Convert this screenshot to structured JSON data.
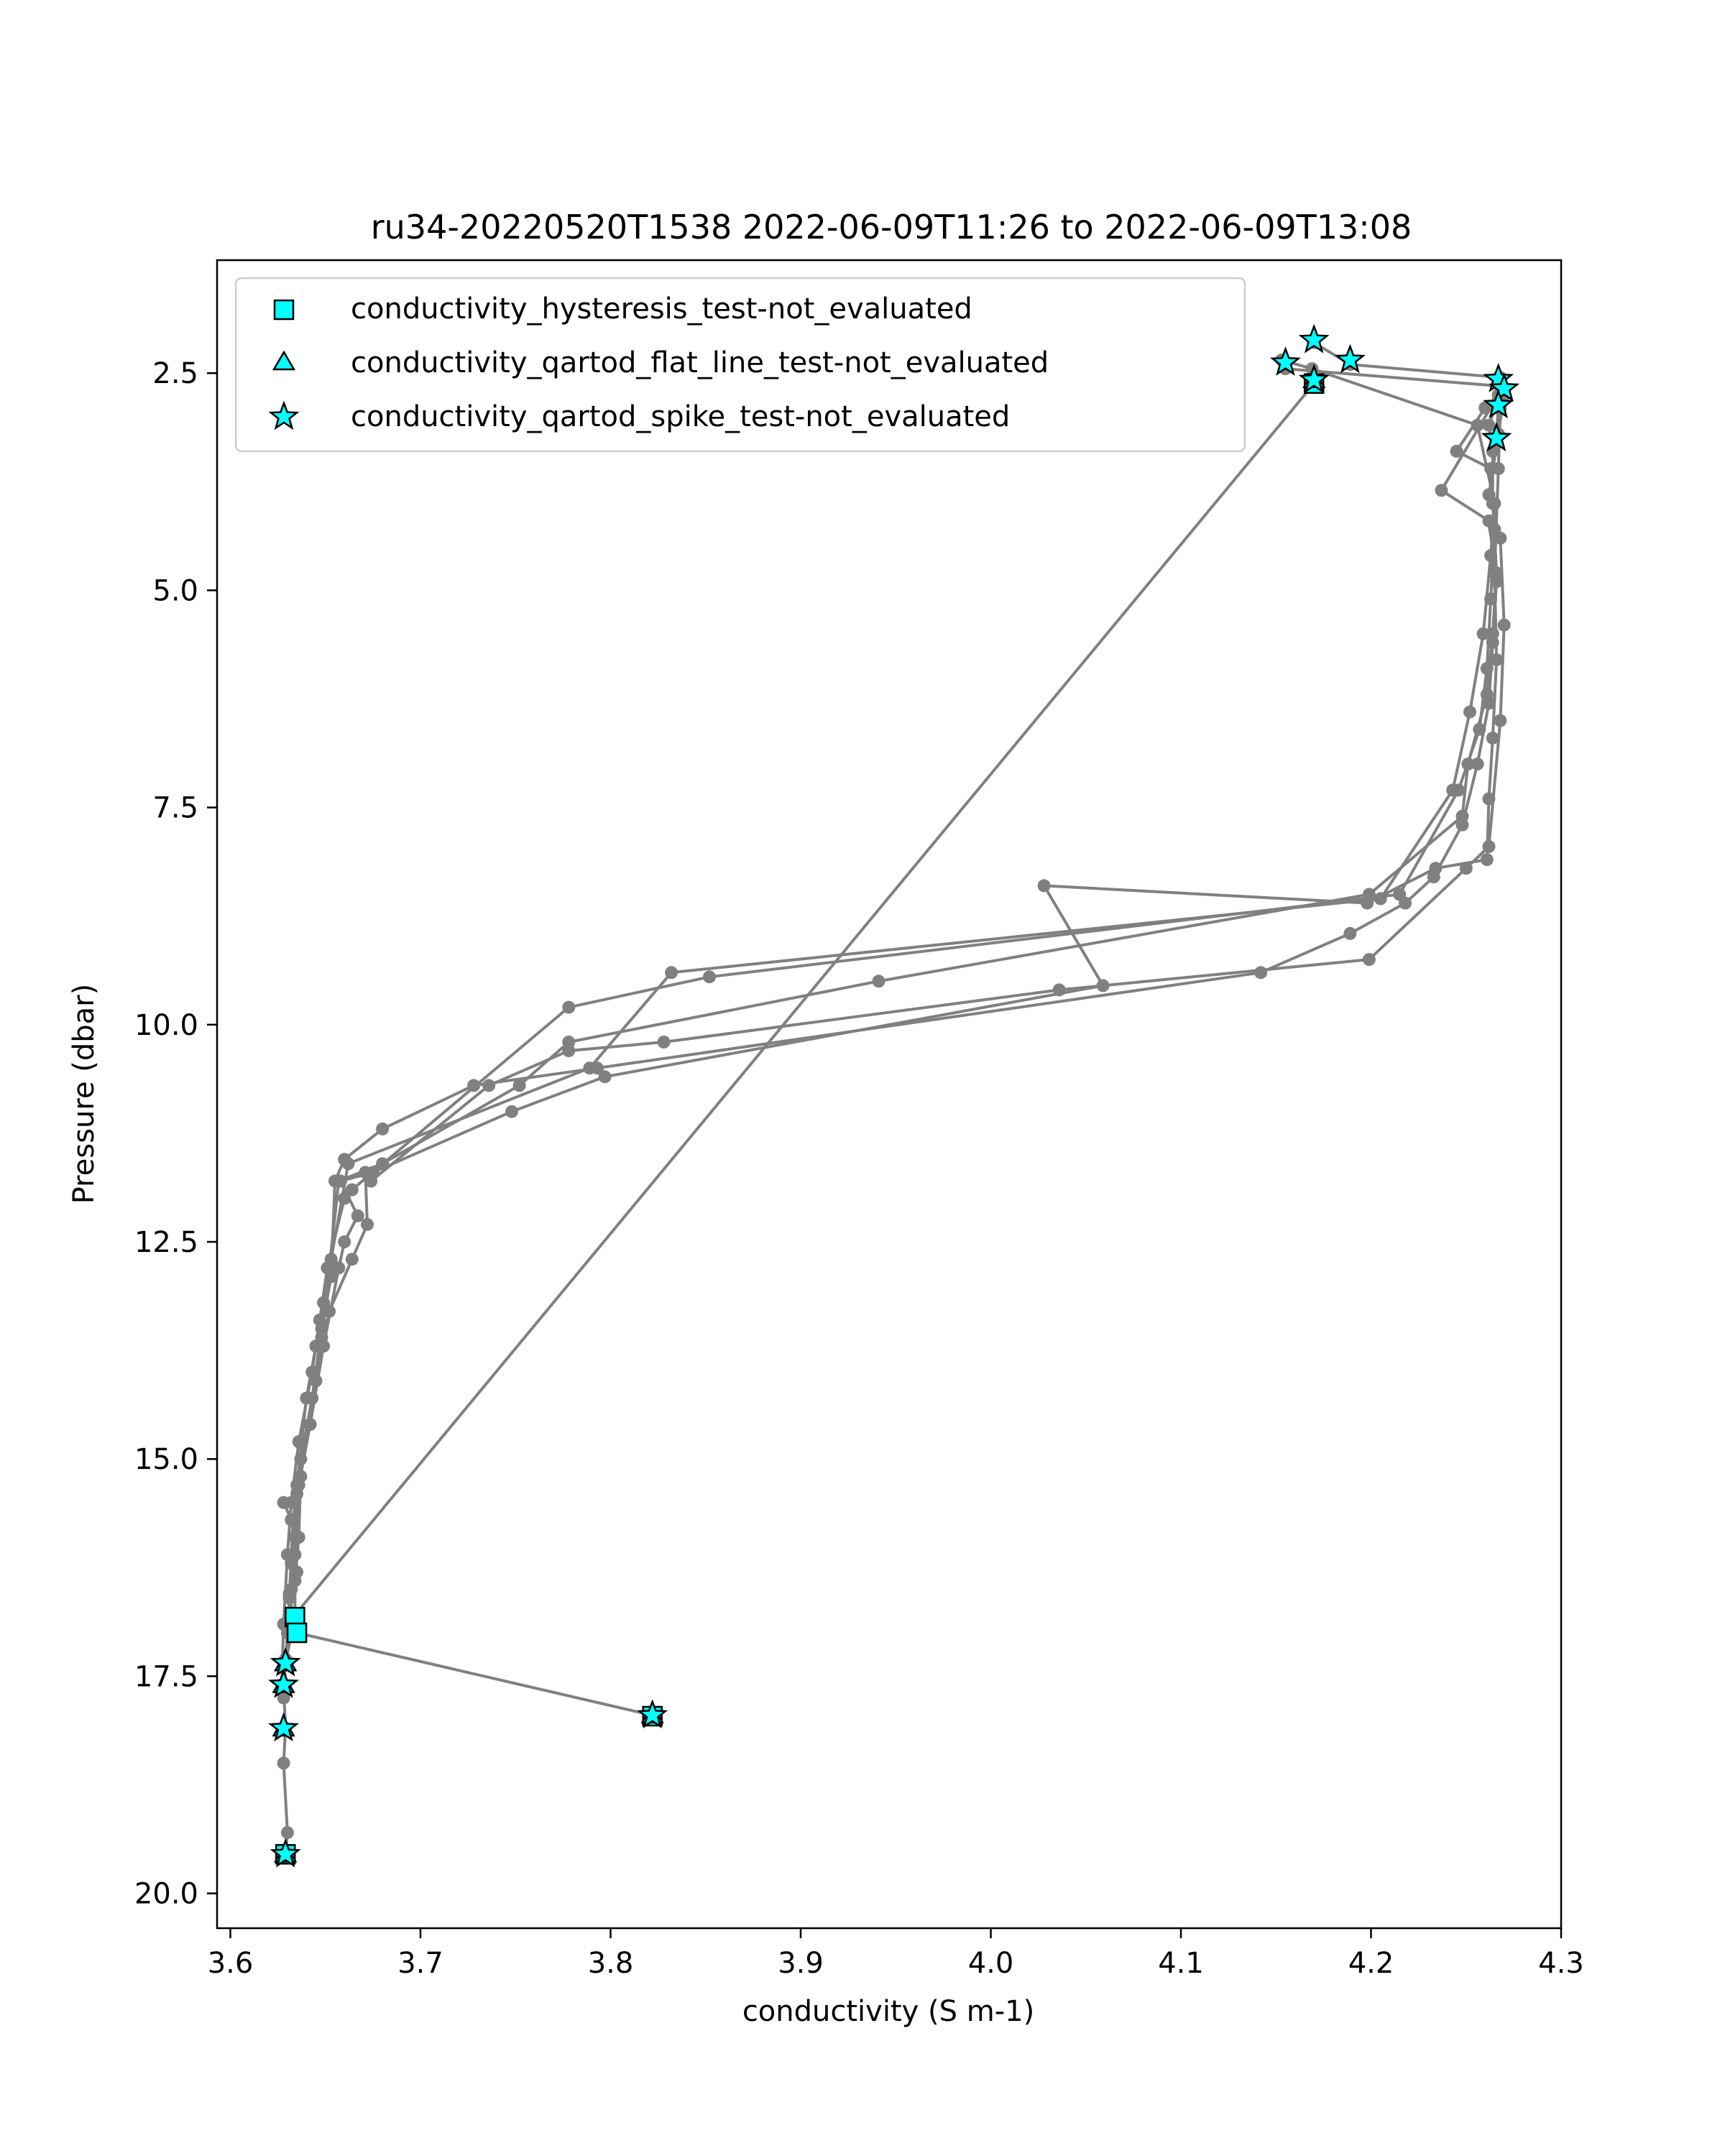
{
  "chart_data": {
    "type": "scatter",
    "title": "ru34-20220520T1538 2022-06-09T11:26 to 2022-06-09T13:08",
    "xlabel": "conductivity (S m-1)",
    "ylabel": "Pressure (dbar)",
    "xlim": [
      3.593,
      4.3
    ],
    "ylim": [
      20.4,
      1.2
    ],
    "y_inverted": true,
    "xticks": [
      3.6,
      3.7,
      3.8,
      3.9,
      4.0,
      4.1,
      4.2,
      4.3
    ],
    "xtick_labels": [
      "3.6",
      "3.7",
      "3.8",
      "3.9",
      "4.0",
      "4.1",
      "4.2",
      "4.3"
    ],
    "yticks": [
      2.5,
      5.0,
      7.5,
      10.0,
      12.5,
      15.0,
      17.5,
      20.0
    ],
    "ytick_labels": [
      "2.5",
      "5.0",
      "7.5",
      "10.0",
      "12.5",
      "15.0",
      "17.5",
      "20.0"
    ],
    "grid": false,
    "legend_position": "top-left",
    "colors": {
      "profile": "#808080",
      "flag_fill": "#00ffff",
      "flag_edge": "#000000"
    },
    "legend": [
      {
        "label": "conductivity_hysteresis_test-not_evaluated",
        "marker": "square"
      },
      {
        "label": "conductivity_qartod_flat_line_test-not_evaluated",
        "marker": "triangle"
      },
      {
        "label": "conductivity_qartod_spike_test-not_evaluated",
        "marker": "star"
      }
    ],
    "profile_segments": [
      [
        [
          3.629,
          19.55
        ],
        [
          3.63,
          19.3
        ],
        [
          3.628,
          18.5
        ],
        [
          3.629,
          18.1
        ],
        [
          3.628,
          17.6
        ],
        [
          3.629,
          17.35
        ],
        [
          3.634,
          16.8
        ],
        [
          3.634,
          16.4
        ],
        [
          3.636,
          15.9
        ],
        [
          3.637,
          15.2
        ],
        [
          3.645,
          14.1
        ],
        [
          3.652,
          13.3
        ],
        [
          3.664,
          12.7
        ],
        [
          3.672,
          12.3
        ],
        [
          3.671,
          11.7
        ],
        [
          3.674,
          11.8
        ],
        [
          3.736,
          10.7
        ],
        [
          3.778,
          10.3
        ],
        [
          3.828,
          10.2
        ],
        [
          4.036,
          9.6
        ],
        [
          4.199,
          9.25
        ],
        [
          4.25,
          8.2
        ],
        [
          4.262,
          7.95
        ],
        [
          4.268,
          6.5
        ],
        [
          4.27,
          5.4
        ],
        [
          4.268,
          4.4
        ],
        [
          4.262,
          3.9
        ],
        [
          4.267,
          3.2
        ],
        [
          4.27,
          2.75
        ]
      ],
      [
        [
          3.629,
          17.3
        ],
        [
          3.631,
          16.9
        ],
        [
          3.634,
          16.1
        ],
        [
          3.636,
          15.3
        ],
        [
          3.642,
          14.6
        ],
        [
          3.649,
          13.7
        ],
        [
          3.657,
          12.8
        ],
        [
          3.66,
          12.5
        ],
        [
          3.667,
          12.2
        ],
        [
          3.658,
          11.8
        ],
        [
          3.675,
          11.7
        ],
        [
          3.748,
          11.0
        ],
        [
          3.797,
          10.6
        ],
        [
          4.059,
          9.55
        ],
        [
          4.028,
          8.4
        ],
        [
          4.198,
          8.6
        ],
        [
          4.234,
          8.2
        ],
        [
          4.261,
          8.1
        ],
        [
          4.262,
          7.4
        ],
        [
          4.264,
          6.7
        ],
        [
          4.266,
          5.8
        ],
        [
          4.265,
          4.8
        ],
        [
          4.267,
          3.6
        ],
        [
          4.268,
          2.9
        ],
        [
          4.267,
          2.55
        ]
      ],
      [
        [
          3.63,
          16.95
        ],
        [
          3.632,
          16.5
        ],
        [
          3.635,
          15.4
        ],
        [
          3.642,
          14.6
        ],
        [
          3.648,
          13.6
        ],
        [
          3.652,
          12.8
        ],
        [
          3.657,
          11.8
        ],
        [
          3.68,
          11.6
        ],
        [
          3.752,
          10.7
        ],
        [
          3.778,
          10.2
        ],
        [
          3.941,
          9.5
        ],
        [
          4.199,
          8.5
        ],
        [
          4.248,
          7.6
        ],
        [
          4.251,
          7.0
        ],
        [
          4.261,
          6.2
        ],
        [
          4.264,
          5.5
        ],
        [
          4.266,
          4.8
        ],
        [
          4.264,
          4.0
        ],
        [
          4.264,
          3.4
        ],
        [
          4.262,
          3.1
        ],
        [
          4.267,
          2.8
        ]
      ],
      [
        [
          3.628,
          17.7
        ],
        [
          3.63,
          17.0
        ],
        [
          3.632,
          16.2
        ],
        [
          3.635,
          15.3
        ],
        [
          3.64,
          14.3
        ],
        [
          3.645,
          13.7
        ],
        [
          3.649,
          13.2
        ],
        [
          3.653,
          12.7
        ],
        [
          3.662,
          11.6
        ],
        [
          3.789,
          10.5
        ],
        [
          3.832,
          9.4
        ],
        [
          4.205,
          8.55
        ],
        [
          4.243,
          7.3
        ],
        [
          4.252,
          6.4
        ],
        [
          4.259,
          5.5
        ],
        [
          4.263,
          4.6
        ],
        [
          4.265,
          4.0
        ],
        [
          4.256,
          3.1
        ],
        [
          4.169,
          2.45
        ],
        [
          4.153,
          2.35
        ]
      ],
      [
        [
          3.627,
          17.6
        ],
        [
          3.628,
          16.9
        ],
        [
          3.63,
          16.1
        ],
        [
          3.632,
          15.5
        ],
        [
          3.636,
          14.8
        ],
        [
          3.643,
          14.0
        ],
        [
          3.647,
          13.4
        ],
        [
          3.651,
          12.8
        ],
        [
          3.66,
          12.0
        ],
        [
          3.664,
          11.9
        ],
        [
          3.778,
          9.8
        ],
        [
          3.852,
          9.45
        ],
        [
          4.215,
          8.5
        ],
        [
          4.246,
          7.3
        ],
        [
          4.257,
          6.6
        ],
        [
          4.261,
          5.9
        ],
        [
          4.263,
          5.1
        ],
        [
          4.265,
          4.3
        ],
        [
          4.263,
          3.6
        ],
        [
          4.245,
          3.4
        ],
        [
          4.26,
          2.9
        ],
        [
          4.267,
          2.9
        ]
      ],
      [
        [
          3.628,
          17.75
        ],
        [
          3.631,
          16.6
        ],
        [
          3.633,
          15.7
        ],
        [
          3.637,
          15.0
        ],
        [
          3.643,
          14.3
        ],
        [
          3.648,
          13.5
        ],
        [
          3.653,
          12.9
        ],
        [
          3.655,
          11.8
        ],
        [
          3.66,
          11.55
        ],
        [
          3.68,
          11.2
        ],
        [
          3.728,
          10.7
        ],
        [
          3.793,
          10.5
        ],
        [
          4.142,
          9.4
        ],
        [
          4.189,
          8.95
        ],
        [
          4.218,
          8.6
        ],
        [
          4.233,
          8.3
        ],
        [
          4.248,
          7.7
        ],
        [
          4.256,
          7.0
        ],
        [
          4.262,
          6.3
        ],
        [
          4.264,
          5.6
        ],
        [
          4.266,
          4.9
        ],
        [
          4.262,
          4.2
        ],
        [
          4.237,
          3.85
        ],
        [
          4.267,
          2.75
        ],
        [
          4.268,
          2.8
        ]
      ],
      [
        [
          3.628,
          15.5
        ],
        [
          3.632,
          15.7
        ],
        [
          3.634,
          15.9
        ],
        [
          3.635,
          16.3
        ],
        [
          3.631,
          16.55
        ],
        [
          3.633,
          16.8
        ]
      ],
      [
        [
          4.17,
          2.62
        ],
        [
          3.633,
          16.82
        ]
      ],
      [
        [
          3.635,
          17.0
        ],
        [
          3.822,
          17.95
        ]
      ],
      [
        [
          4.155,
          2.45
        ],
        [
          4.268,
          2.65
        ]
      ],
      [
        [
          4.17,
          2.15
        ],
        [
          4.189,
          2.4
        ],
        [
          4.268,
          2.55
        ],
        [
          4.27,
          2.68
        ],
        [
          4.267,
          2.85
        ],
        [
          4.266,
          3.25
        ]
      ]
    ],
    "hysteresis_flags": [
      [
        3.634,
        16.82
      ],
      [
        3.635,
        17.0
      ],
      [
        3.822,
        17.96
      ],
      [
        4.17,
        2.62
      ],
      [
        3.629,
        19.55
      ]
    ],
    "flat_line_flags": [
      [
        3.629,
        19.55
      ],
      [
        3.822,
        17.95
      ],
      [
        4.17,
        2.58
      ],
      [
        3.629,
        17.35
      ],
      [
        3.628,
        17.6
      ],
      [
        3.628,
        18.1
      ]
    ],
    "spike_flags": [
      [
        4.17,
        2.12
      ],
      [
        4.155,
        2.38
      ],
      [
        4.189,
        2.35
      ],
      [
        4.17,
        2.58
      ],
      [
        4.267,
        2.57
      ],
      [
        4.27,
        2.68
      ],
      [
        4.267,
        2.87
      ],
      [
        4.266,
        3.25
      ],
      [
        3.629,
        17.35
      ],
      [
        3.628,
        17.6
      ],
      [
        3.628,
        18.1
      ],
      [
        3.822,
        17.95
      ],
      [
        3.629,
        19.55
      ]
    ]
  }
}
